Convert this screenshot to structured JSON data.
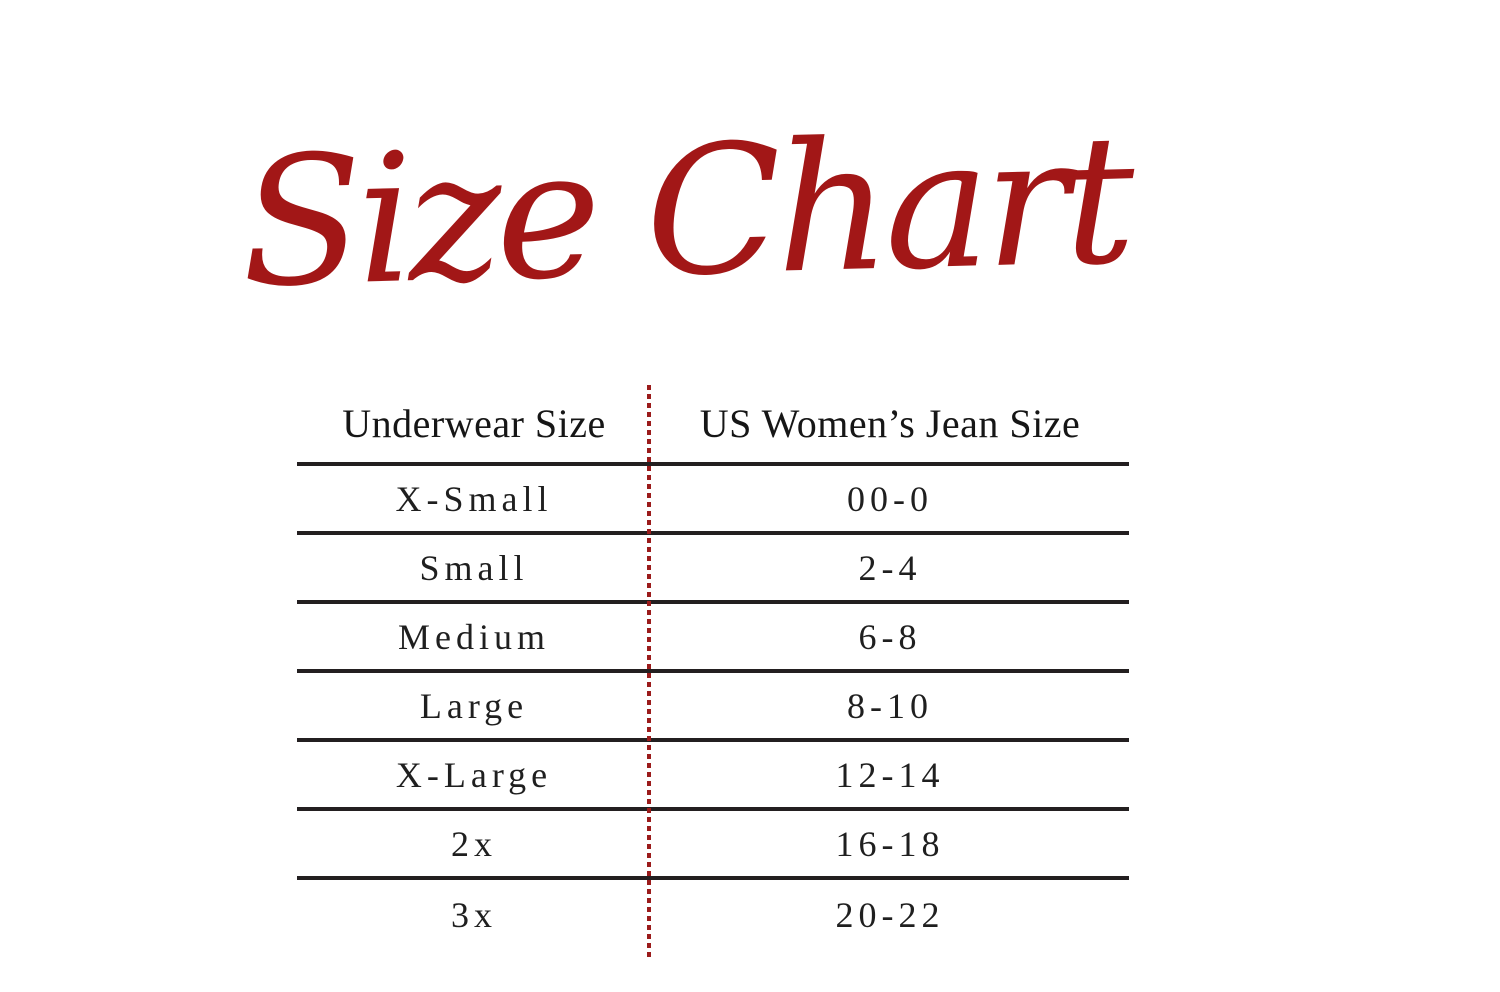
{
  "title": "Size Chart",
  "table": {
    "headers": [
      "Underwear Size",
      "US Women’s Jean Size"
    ],
    "rows": [
      {
        "underwear": "X-Small",
        "jean": "00-0"
      },
      {
        "underwear": "Small",
        "jean": "2-4"
      },
      {
        "underwear": "Medium",
        "jean": "6-8"
      },
      {
        "underwear": "Large",
        "jean": "8-10"
      },
      {
        "underwear": "X-Large",
        "jean": "12-14"
      },
      {
        "underwear": "2x",
        "jean": "16-18"
      },
      {
        "underwear": "3x",
        "jean": "20-22"
      }
    ]
  },
  "colors": {
    "accent_red": "#A21717",
    "dotted_line_red": "#9B1B1B",
    "rule_dark": "#231F20",
    "text": "#1A1A1A",
    "background": "#FFFFFF"
  },
  "chart_data": {
    "type": "table",
    "title": "Size Chart",
    "columns": [
      "Underwear Size",
      "US Women’s Jean Size"
    ],
    "rows": [
      [
        "X-Small",
        "00-0"
      ],
      [
        "Small",
        "2-4"
      ],
      [
        "Medium",
        "6-8"
      ],
      [
        "Large",
        "8-10"
      ],
      [
        "X-Large",
        "12-14"
      ],
      [
        "2x",
        "16-18"
      ],
      [
        "3x",
        "20-22"
      ]
    ],
    "layout": {
      "column_divider": "red dotted vertical line",
      "row_dividers": "solid dark horizontal rules",
      "last_row_divider": false
    }
  }
}
